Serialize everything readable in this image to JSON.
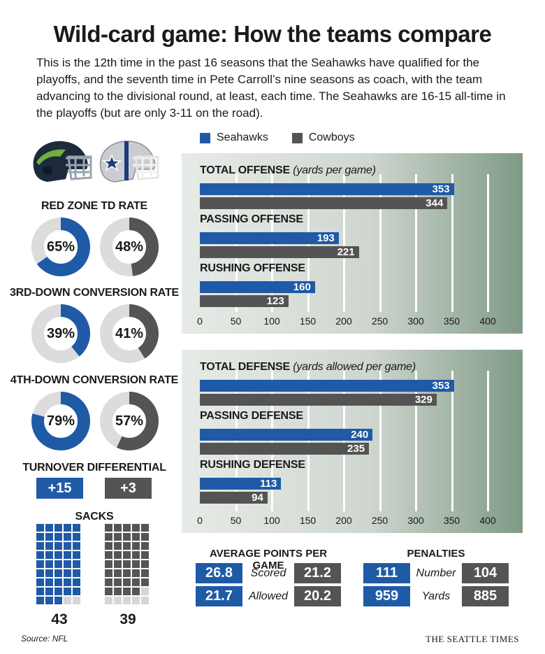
{
  "title": "Wild-card game: How the teams compare",
  "intro": "This is the 12th time in the past 16 seasons that the Seahawks have qualified for the playoffs, and the seventh time in Pete Carroll’s nine seasons as coach, with the team advancing to the divisional round, at least, each time. The Seahawks are 16-15 all-time in the playoffs (but are only 3-11 on the road).",
  "colors": {
    "seahawks": "#1f5aa6",
    "cowboys": "#545454",
    "track": "#dcdcdc"
  },
  "legend": {
    "seahawks": "Seahawks",
    "cowboys": "Cowboys"
  },
  "red_zone": {
    "label": "RED ZONE TD RATE",
    "seahawks": "65%",
    "cowboys": "48%",
    "seahawks_value": 65,
    "cowboys_value": 48
  },
  "third_down": {
    "label": "3RD-DOWN CONVERSION RATE",
    "seahawks": "39%",
    "cowboys": "41%",
    "seahawks_value": 39,
    "cowboys_value": 41
  },
  "fourth_down": {
    "label": "4TH-DOWN CONVERSION RATE",
    "seahawks": "79%",
    "cowboys": "57%",
    "seahawks_value": 79,
    "cowboys_value": 57
  },
  "turnover": {
    "label": "TURNOVER DIFFERENTIAL",
    "seahawks": "+15",
    "cowboys": "+3"
  },
  "sacks": {
    "label": "SACKS",
    "seahawks": "43",
    "cowboys": "39",
    "seahawks_value": 43,
    "cowboys_value": 39,
    "capacity": 45
  },
  "chart_data": [
    {
      "type": "bar",
      "title": "TOTAL OFFENSE",
      "title_note": "(yards per game)",
      "categories": [
        "TOTAL OFFENSE",
        "PASSING OFFENSE",
        "RUSHING OFFENSE"
      ],
      "series": [
        {
          "name": "Seahawks",
          "values": [
            353,
            193,
            160
          ]
        },
        {
          "name": "Cowboys",
          "values": [
            344,
            221,
            123
          ]
        }
      ],
      "ticks": [
        "0",
        "50",
        "100",
        "150",
        "200",
        "250",
        "300",
        "350",
        "400"
      ],
      "xlim": [
        0,
        400
      ],
      "grid": true
    },
    {
      "type": "bar",
      "title": "TOTAL DEFENSE",
      "title_note": "(yards allowed per game)",
      "categories": [
        "TOTAL DEFENSE",
        "PASSING DEFENSE",
        "RUSHING DEFENSE"
      ],
      "series": [
        {
          "name": "Seahawks",
          "values": [
            353,
            240,
            113
          ]
        },
        {
          "name": "Cowboys",
          "values": [
            329,
            235,
            94
          ]
        }
      ],
      "ticks": [
        "0",
        "50",
        "100",
        "150",
        "200",
        "250",
        "300",
        "350",
        "400"
      ],
      "xlim": [
        0,
        400
      ],
      "grid": true
    }
  ],
  "points": {
    "label": "AVERAGE POINTS PER GAME",
    "rows": [
      {
        "label": "Scored",
        "seahawks": "26.8",
        "cowboys": "21.2"
      },
      {
        "label": "Allowed",
        "seahawks": "21.7",
        "cowboys": "20.2"
      }
    ]
  },
  "penalties": {
    "label": "PENALTIES",
    "rows": [
      {
        "label": "Number",
        "seahawks": "111",
        "cowboys": "104"
      },
      {
        "label": "Yards",
        "seahawks": "959",
        "cowboys": "885"
      }
    ]
  },
  "source": "Source: NFL",
  "brand": "THE SEATTLE TIMES"
}
